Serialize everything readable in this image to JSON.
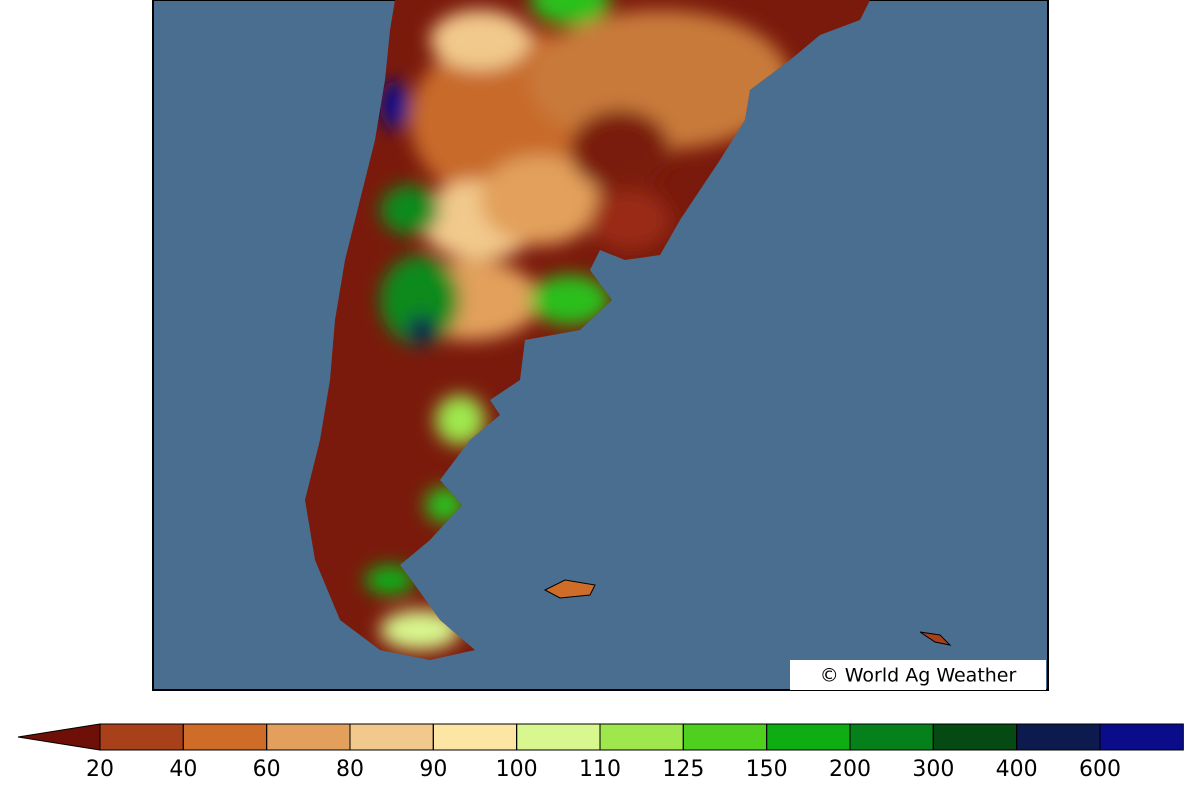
{
  "credit": "© World Ag Weather",
  "colorbar": {
    "ticks": [
      20,
      40,
      60,
      80,
      90,
      100,
      110,
      125,
      150,
      200,
      300,
      400,
      600
    ],
    "under_color": "#6e1008",
    "colors": [
      "#a8401a",
      "#cf6c28",
      "#e2a05c",
      "#f2c98c",
      "#fde6a4",
      "#d8f78e",
      "#9ee84e",
      "#4fd01e",
      "#0eae12",
      "#06801a",
      "#044a12",
      "#0c1a4e",
      "#0a0c8a"
    ],
    "over_color": "#1010f0"
  }
}
